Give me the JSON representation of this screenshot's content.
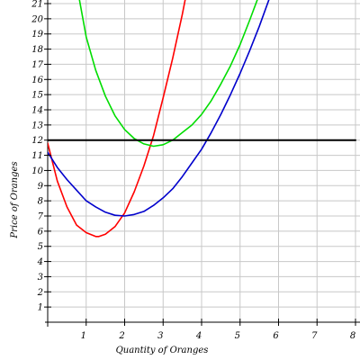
{
  "chart_data": {
    "type": "line",
    "title": "",
    "xlabel": "Quantity of Oranges",
    "ylabel": "Price of Oranges",
    "xlim": [
      0,
      8
    ],
    "ylim": [
      0,
      21
    ],
    "x_ticks": [
      1,
      2,
      3,
      4,
      5,
      6,
      7,
      8
    ],
    "y_ticks": [
      1,
      2,
      3,
      4,
      5,
      6,
      7,
      8,
      9,
      10,
      11,
      12,
      13,
      14,
      15,
      16,
      17,
      18,
      19,
      20,
      21
    ],
    "grid": true,
    "series": [
      {
        "color": "#ff0000",
        "x": [
          0,
          0.25,
          0.5,
          0.75,
          1,
          1.25,
          1.33,
          1.5,
          1.75,
          2,
          2.25,
          2.5,
          2.75,
          3,
          3.25,
          3.5,
          3.6
        ],
        "y": [
          11.8,
          9.3,
          7.6,
          6.4,
          5.9,
          5.65,
          5.65,
          5.8,
          6.3,
          7.2,
          8.6,
          10.3,
          12.3,
          14.8,
          17.4,
          20.3,
          21.6
        ]
      },
      {
        "color": "#00dd00",
        "x": [
          0.8,
          1,
          1.25,
          1.5,
          1.75,
          2,
          2.25,
          2.5,
          2.75,
          3,
          3.25,
          3.5,
          3.75,
          4,
          4.25,
          4.5,
          4.75,
          5,
          5.25,
          5.5
        ],
        "y": [
          21.6,
          18.8,
          16.6,
          14.9,
          13.6,
          12.7,
          12.1,
          11.75,
          11.6,
          11.7,
          12.0,
          12.5,
          13.0,
          13.7,
          14.6,
          15.7,
          16.9,
          18.3,
          19.9,
          21.6
        ]
      },
      {
        "color": "#0000cc",
        "x": [
          0,
          0.25,
          0.5,
          0.75,
          1,
          1.25,
          1.5,
          1.75,
          2,
          2.25,
          2.5,
          2.75,
          3,
          3.25,
          3.5,
          3.75,
          4,
          4.25,
          4.5,
          4.75,
          5,
          5.25,
          5.5,
          5.8
        ],
        "y": [
          11.2,
          10.2,
          9.4,
          8.7,
          8.0,
          7.6,
          7.25,
          7.05,
          7.0,
          7.1,
          7.3,
          7.7,
          8.2,
          8.8,
          9.6,
          10.5,
          11.4,
          12.5,
          13.7,
          15.0,
          16.4,
          17.9,
          19.5,
          21.6
        ]
      },
      {
        "color": "#000000",
        "x": [
          0,
          8
        ],
        "y": [
          12,
          12
        ]
      }
    ]
  }
}
